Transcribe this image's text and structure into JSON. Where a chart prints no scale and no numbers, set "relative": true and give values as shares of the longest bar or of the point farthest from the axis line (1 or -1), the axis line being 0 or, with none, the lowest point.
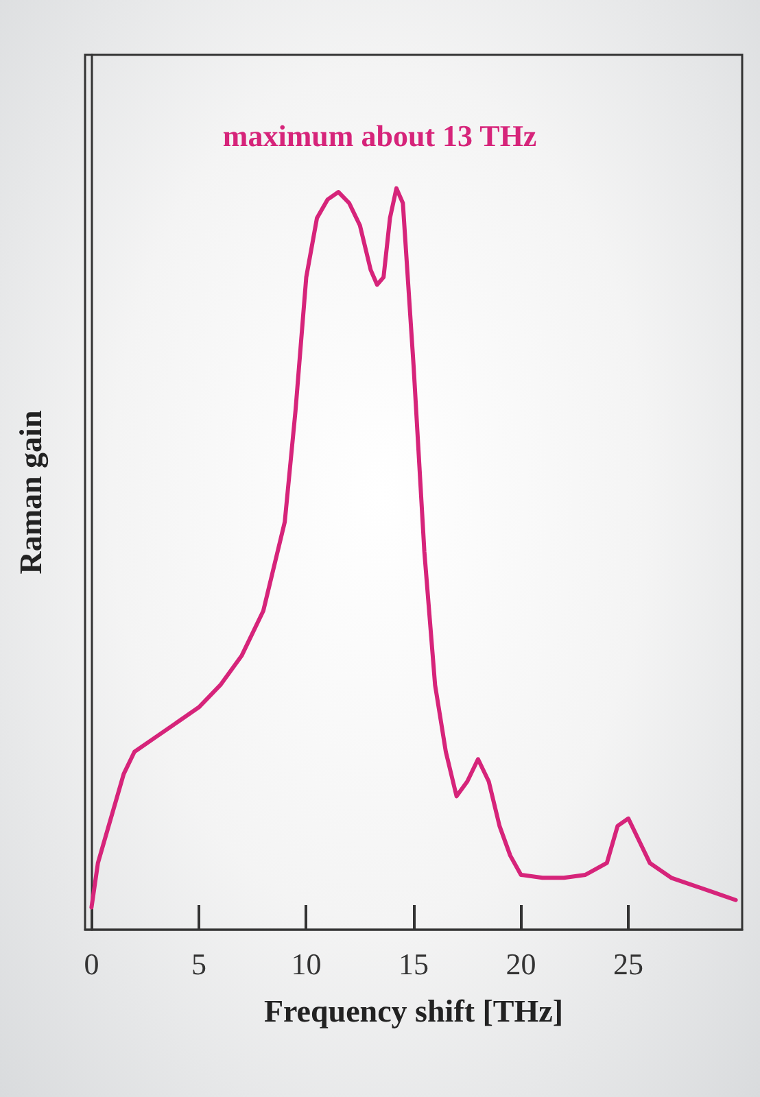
{
  "chart_data": {
    "type": "line",
    "relative": true,
    "xlabel": "Frequency shift [THz]",
    "ylabel": "Raman gain",
    "annotations": [
      "maximum about 13 THz"
    ],
    "xlim": [
      -0.3,
      30.3
    ],
    "xticks": [
      0,
      5,
      10,
      15,
      20,
      25
    ],
    "series": [
      {
        "color": "#d6247a",
        "x": [
          0,
          0.3,
          1.5,
          2,
          3,
          4,
          5,
          6,
          7,
          8,
          9,
          9.5,
          10,
          10.5,
          11,
          11.5,
          12,
          12.5,
          13,
          13.3,
          13.6,
          13.9,
          14.2,
          14.5,
          15,
          15.5,
          16,
          16.5,
          17,
          17.5,
          18,
          18.5,
          19,
          19.5,
          20,
          21,
          22,
          23,
          24,
          24.5,
          25,
          25.5,
          26,
          27,
          28,
          29,
          30
        ],
        "values": [
          0.03,
          0.09,
          0.21,
          0.24,
          0.26,
          0.28,
          0.3,
          0.33,
          0.37,
          0.43,
          0.55,
          0.7,
          0.88,
          0.96,
          0.985,
          0.995,
          0.98,
          0.95,
          0.89,
          0.87,
          0.88,
          0.96,
          1,
          0.98,
          0.76,
          0.51,
          0.33,
          0.24,
          0.18,
          0.2,
          0.23,
          0.2,
          0.14,
          0.1,
          0.074,
          0.07,
          0.07,
          0.074,
          0.09,
          0.14,
          0.15,
          0.12,
          0.09,
          0.07,
          0.06,
          0.05,
          0.04
        ]
      }
    ]
  }
}
